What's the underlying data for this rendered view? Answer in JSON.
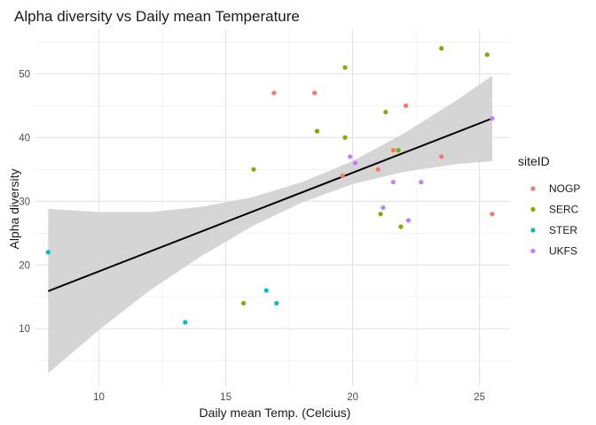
{
  "chart_data": {
    "type": "scatter",
    "title": "Alpha diversity vs Daily mean Temperature",
    "xlabel": "Daily mean Temp. (Celcius)",
    "ylabel": "Alpha diversity",
    "xlim": [
      7.5,
      26.2
    ],
    "ylim": [
      1.0,
      57.0
    ],
    "xticks": [
      10,
      15,
      20,
      25
    ],
    "yticks": [
      10,
      20,
      30,
      40,
      50
    ],
    "grid": true,
    "legend": {
      "title": "siteID",
      "position": "right"
    },
    "series": [
      {
        "name": "NOGP",
        "color": "#F8766D",
        "points": [
          {
            "x": 16.9,
            "y": 47
          },
          {
            "x": 18.5,
            "y": 47
          },
          {
            "x": 19.6,
            "y": 34
          },
          {
            "x": 21.0,
            "y": 35
          },
          {
            "x": 21.6,
            "y": 38
          },
          {
            "x": 22.1,
            "y": 45
          },
          {
            "x": 23.5,
            "y": 37
          },
          {
            "x": 25.5,
            "y": 28
          }
        ]
      },
      {
        "name": "SERC",
        "color": "#7CAE00",
        "points": [
          {
            "x": 15.7,
            "y": 14
          },
          {
            "x": 16.1,
            "y": 35
          },
          {
            "x": 18.6,
            "y": 41
          },
          {
            "x": 19.7,
            "y": 51
          },
          {
            "x": 19.7,
            "y": 40
          },
          {
            "x": 21.1,
            "y": 28
          },
          {
            "x": 21.3,
            "y": 44
          },
          {
            "x": 21.8,
            "y": 38
          },
          {
            "x": 21.9,
            "y": 26
          },
          {
            "x": 23.5,
            "y": 54
          },
          {
            "x": 25.3,
            "y": 53
          }
        ]
      },
      {
        "name": "STER",
        "color": "#00BFC4",
        "points": [
          {
            "x": 8.0,
            "y": 22
          },
          {
            "x": 13.4,
            "y": 11
          },
          {
            "x": 16.6,
            "y": 16
          },
          {
            "x": 17.0,
            "y": 14
          }
        ]
      },
      {
        "name": "UKFS",
        "color": "#C77CFF",
        "points": [
          {
            "x": 19.9,
            "y": 37
          },
          {
            "x": 20.1,
            "y": 36
          },
          {
            "x": 21.2,
            "y": 29
          },
          {
            "x": 21.6,
            "y": 33
          },
          {
            "x": 22.2,
            "y": 27
          },
          {
            "x": 22.7,
            "y": 33
          },
          {
            "x": 25.5,
            "y": 43
          }
        ]
      }
    ],
    "fit": {
      "method": "linear",
      "line_color": "#000000",
      "band_color": "#d3d3d3",
      "x": [
        8.0,
        10,
        12,
        14,
        16,
        18,
        20,
        22,
        24,
        25.5
      ],
      "y": [
        15.9,
        19.0,
        22.1,
        25.2,
        28.3,
        31.4,
        34.5,
        37.6,
        40.7,
        43.0
      ],
      "lower": [
        3.0,
        9.8,
        16.0,
        21.3,
        26.0,
        29.8,
        32.7,
        34.6,
        35.8,
        36.3
      ],
      "upper": [
        28.8,
        28.3,
        28.3,
        29.1,
        30.6,
        33.0,
        36.3,
        40.6,
        45.6,
        49.7
      ]
    }
  }
}
